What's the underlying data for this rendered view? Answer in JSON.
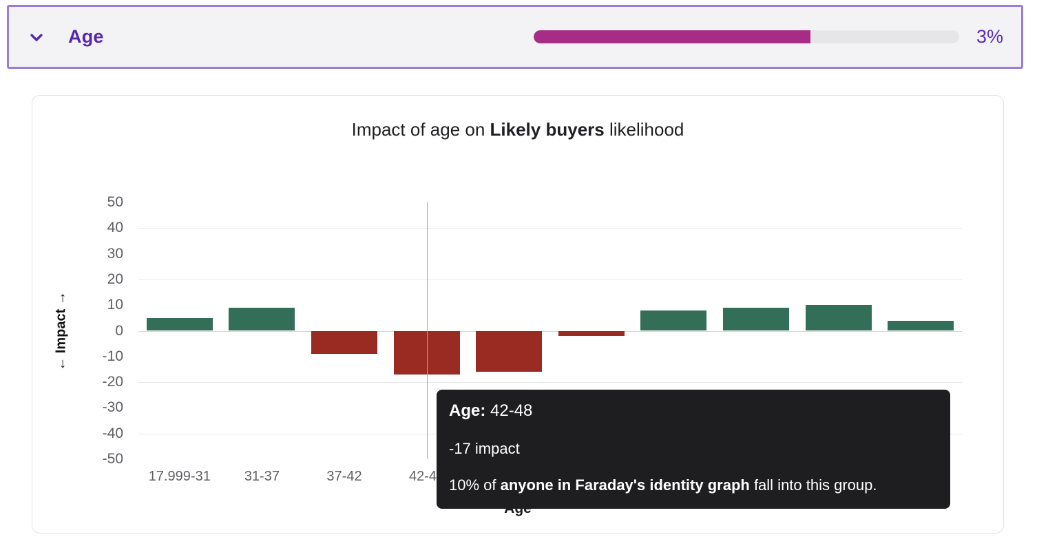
{
  "header": {
    "title": "Age",
    "value_label": "3%",
    "progress_percent": 65,
    "colors": {
      "border": "#9d7cd8",
      "background": "#f3f2f4",
      "title_text": "#5627ad",
      "value_text": "#5e2bb8",
      "progress_fill": "#a62c85",
      "progress_track": "#e6e5e8"
    }
  },
  "chart_card": {
    "title_prefix": "Impact of age on ",
    "title_bold": "Likely buyers",
    "title_suffix": " likelihood"
  },
  "chart_data": {
    "type": "bar",
    "title": "Impact of age on Likely buyers likelihood",
    "xlabel": "Age",
    "ylabel": "← Impact →",
    "ylim": [
      -50,
      50
    ],
    "yticks": [
      50,
      40,
      30,
      20,
      10,
      0,
      -10,
      -20,
      -30,
      -40,
      -50
    ],
    "gridlines_at": [
      40,
      20,
      0,
      -20,
      -40
    ],
    "categories": [
      "17.999-31",
      "31-37",
      "37-42",
      "42-48",
      "",
      "",
      "",
      "",
      "",
      ""
    ],
    "values": [
      5,
      9,
      -9,
      -17,
      -16,
      -2,
      8,
      9,
      10,
      4
    ],
    "positive_color": "#336e59",
    "negative_color": "#9a2b23",
    "highlighted_index": 3,
    "legend": "none",
    "grid": "horizontal"
  },
  "tooltip": {
    "label": "Age:",
    "value": " 42-48",
    "impact_line": "-17 impact",
    "share_prefix": "10% of ",
    "share_bold": "anyone in Faraday's identity graph",
    "share_suffix": " fall into this group."
  }
}
